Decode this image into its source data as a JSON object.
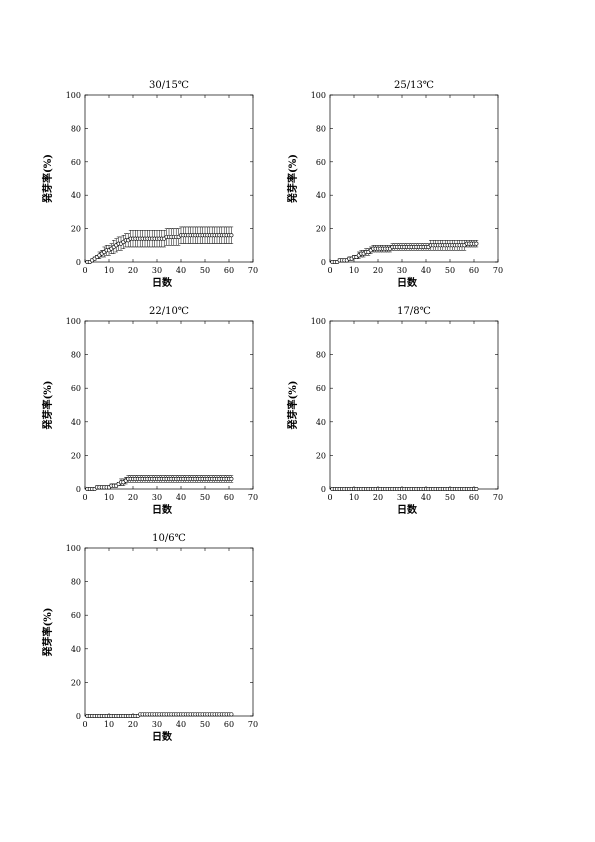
{
  "chart_data": [
    {
      "type": "scatter",
      "title": "30/15℃",
      "xlabel": "日数",
      "ylabel": "発芽率(%)",
      "xlim": [
        0,
        70
      ],
      "ylim": [
        0,
        100
      ],
      "xticks": [
        0,
        10,
        20,
        30,
        40,
        50,
        60,
        70
      ],
      "yticks": [
        0,
        20,
        40,
        60,
        80,
        100
      ],
      "grid": false,
      "error_bars": true,
      "x": [
        1,
        2,
        3,
        4,
        5,
        6,
        7,
        8,
        9,
        10,
        11,
        12,
        13,
        14,
        15,
        16,
        17,
        18,
        19,
        20,
        21,
        22,
        23,
        24,
        25,
        26,
        27,
        28,
        29,
        30,
        31,
        32,
        33,
        34,
        35,
        36,
        37,
        38,
        39,
        40,
        41,
        42,
        43,
        44,
        45,
        46,
        47,
        48,
        49,
        50,
        51,
        52,
        53,
        54,
        55,
        56,
        57,
        58,
        59,
        60,
        61
      ],
      "y": [
        0,
        0,
        1,
        2,
        3,
        4,
        5,
        6,
        7,
        7,
        8,
        9,
        10,
        11,
        11,
        12,
        13,
        13,
        14,
        14,
        14,
        14,
        14,
        14,
        14,
        14,
        14,
        14,
        14,
        14,
        14,
        14,
        14,
        15,
        15,
        15,
        15,
        15,
        15,
        16,
        16,
        16,
        16,
        16,
        16,
        16,
        16,
        16,
        16,
        16,
        16,
        16,
        16,
        16,
        16,
        16,
        16,
        16,
        16,
        16,
        16
      ],
      "err": [
        0,
        0,
        1,
        1,
        1,
        2,
        2,
        3,
        3,
        3,
        3,
        4,
        4,
        4,
        4,
        4,
        4,
        4,
        5,
        5,
        5,
        5,
        5,
        5,
        5,
        5,
        5,
        5,
        5,
        5,
        5,
        5,
        5,
        5,
        5,
        5,
        5,
        5,
        5,
        5,
        5,
        5,
        5,
        5,
        5,
        5,
        5,
        5,
        5,
        5,
        5,
        5,
        5,
        5,
        5,
        5,
        5,
        5,
        5,
        5,
        5
      ]
    },
    {
      "type": "scatter",
      "title": "25/13℃",
      "xlabel": "日数",
      "ylabel": "発芽率(%)",
      "xlim": [
        0,
        70
      ],
      "ylim": [
        0,
        100
      ],
      "xticks": [
        0,
        10,
        20,
        30,
        40,
        50,
        60,
        70
      ],
      "yticks": [
        0,
        20,
        40,
        60,
        80,
        100
      ],
      "grid": false,
      "error_bars": true,
      "x": [
        1,
        2,
        3,
        4,
        5,
        6,
        7,
        8,
        9,
        10,
        11,
        12,
        13,
        14,
        15,
        16,
        17,
        18,
        19,
        20,
        21,
        22,
        23,
        24,
        25,
        26,
        27,
        28,
        29,
        30,
        31,
        32,
        33,
        34,
        35,
        36,
        37,
        38,
        39,
        40,
        41,
        42,
        43,
        44,
        45,
        46,
        47,
        48,
        49,
        50,
        51,
        52,
        53,
        54,
        55,
        56,
        57,
        58,
        59,
        60,
        61
      ],
      "y": [
        0,
        0,
        0,
        1,
        1,
        1,
        1,
        2,
        2,
        3,
        3,
        4,
        5,
        5,
        6,
        6,
        7,
        8,
        8,
        8,
        8,
        8,
        8,
        8,
        8,
        9,
        9,
        9,
        9,
        9,
        9,
        9,
        9,
        9,
        9,
        9,
        9,
        9,
        9,
        9,
        9,
        10,
        10,
        10,
        10,
        10,
        10,
        10,
        10,
        10,
        10,
        10,
        10,
        10,
        10,
        10,
        11,
        11,
        11,
        11,
        11
      ],
      "err": [
        0,
        0,
        0,
        1,
        1,
        1,
        1,
        1,
        1,
        1,
        1,
        2,
        2,
        2,
        2,
        2,
        2,
        2,
        2,
        2,
        2,
        2,
        2,
        2,
        2,
        2,
        2,
        2,
        2,
        2,
        2,
        2,
        2,
        2,
        2,
        2,
        2,
        2,
        2,
        2,
        2,
        3,
        3,
        3,
        3,
        3,
        3,
        3,
        3,
        3,
        3,
        3,
        3,
        3,
        3,
        3,
        2,
        2,
        2,
        2,
        2
      ]
    },
    {
      "type": "scatter",
      "title": "22/10℃",
      "xlabel": "日数",
      "ylabel": "発芽率(%)",
      "xlim": [
        0,
        70
      ],
      "ylim": [
        0,
        100
      ],
      "xticks": [
        0,
        10,
        20,
        30,
        40,
        50,
        60,
        70
      ],
      "yticks": [
        0,
        20,
        40,
        60,
        80,
        100
      ],
      "grid": false,
      "error_bars": true,
      "x": [
        1,
        2,
        3,
        4,
        5,
        6,
        7,
        8,
        9,
        10,
        11,
        12,
        13,
        14,
        15,
        16,
        17,
        18,
        19,
        20,
        21,
        22,
        23,
        24,
        25,
        26,
        27,
        28,
        29,
        30,
        31,
        32,
        33,
        34,
        35,
        36,
        37,
        38,
        39,
        40,
        41,
        42,
        43,
        44,
        45,
        46,
        47,
        48,
        49,
        50,
        51,
        52,
        53,
        54,
        55,
        56,
        57,
        58,
        59,
        60,
        61
      ],
      "y": [
        0,
        0,
        0,
        0,
        1,
        1,
        1,
        1,
        1,
        1,
        2,
        2,
        2,
        3,
        4,
        4,
        5,
        6,
        6,
        6,
        6,
        6,
        6,
        6,
        6,
        6,
        6,
        6,
        6,
        6,
        6,
        6,
        6,
        6,
        6,
        6,
        6,
        6,
        6,
        6,
        6,
        6,
        6,
        6,
        6,
        6,
        6,
        6,
        6,
        6,
        6,
        6,
        6,
        6,
        6,
        6,
        6,
        6,
        6,
        6,
        6
      ],
      "err": [
        0,
        0,
        0,
        0,
        1,
        1,
        1,
        1,
        1,
        1,
        1,
        1,
        1,
        1,
        2,
        2,
        2,
        2,
        2,
        2,
        2,
        2,
        2,
        2,
        2,
        2,
        2,
        2,
        2,
        2,
        2,
        2,
        2,
        2,
        2,
        2,
        2,
        2,
        2,
        2,
        2,
        2,
        2,
        2,
        2,
        2,
        2,
        2,
        2,
        2,
        2,
        2,
        2,
        2,
        2,
        2,
        2,
        2,
        2,
        2,
        2
      ]
    },
    {
      "type": "scatter",
      "title": "17/8℃",
      "xlabel": "日数",
      "ylabel": "発芽率(%)",
      "xlim": [
        0,
        70
      ],
      "ylim": [
        0,
        100
      ],
      "xticks": [
        0,
        10,
        20,
        30,
        40,
        50,
        60,
        70
      ],
      "yticks": [
        0,
        20,
        40,
        60,
        80,
        100
      ],
      "grid": false,
      "error_bars": false,
      "x": [
        1,
        2,
        3,
        4,
        5,
        6,
        7,
        8,
        9,
        10,
        11,
        12,
        13,
        14,
        15,
        16,
        17,
        18,
        19,
        20,
        21,
        22,
        23,
        24,
        25,
        26,
        27,
        28,
        29,
        30,
        31,
        32,
        33,
        34,
        35,
        36,
        37,
        38,
        39,
        40,
        41,
        42,
        43,
        44,
        45,
        46,
        47,
        48,
        49,
        50,
        51,
        52,
        53,
        54,
        55,
        56,
        57,
        58,
        59,
        60,
        61
      ],
      "y": [
        0,
        0,
        0,
        0,
        0,
        0,
        0,
        0,
        0,
        0,
        0,
        0,
        0,
        0,
        0,
        0,
        0,
        0,
        0,
        0,
        0,
        0,
        0,
        0,
        0,
        0,
        0,
        0,
        0,
        0,
        0,
        0,
        0,
        0,
        0,
        0,
        0,
        0,
        0,
        0,
        0,
        0,
        0,
        0,
        0,
        0,
        0,
        0,
        0,
        0,
        0,
        0,
        0,
        0,
        0,
        0,
        0,
        0,
        0,
        0,
        0
      ],
      "err": []
    },
    {
      "type": "scatter",
      "title": "10/6℃",
      "xlabel": "日数",
      "ylabel": "発芽率(%)",
      "xlim": [
        0,
        70
      ],
      "ylim": [
        0,
        100
      ],
      "xticks": [
        0,
        10,
        20,
        30,
        40,
        50,
        60,
        70
      ],
      "yticks": [
        0,
        20,
        40,
        60,
        80,
        100
      ],
      "grid": false,
      "error_bars": false,
      "x": [
        1,
        2,
        3,
        4,
        5,
        6,
        7,
        8,
        9,
        10,
        11,
        12,
        13,
        14,
        15,
        16,
        17,
        18,
        19,
        20,
        21,
        22,
        23,
        24,
        25,
        26,
        27,
        28,
        29,
        30,
        31,
        32,
        33,
        34,
        35,
        36,
        37,
        38,
        39,
        40,
        41,
        42,
        43,
        44,
        45,
        46,
        47,
        48,
        49,
        50,
        51,
        52,
        53,
        54,
        55,
        56,
        57,
        58,
        59,
        60,
        61
      ],
      "y": [
        0,
        0,
        0,
        0,
        0,
        0,
        0,
        0,
        0,
        0,
        0,
        0,
        0,
        0,
        0,
        0,
        0,
        0,
        0,
        0,
        0,
        0,
        1,
        1,
        1,
        1,
        1,
        1,
        1,
        1,
        1,
        1,
        1,
        1,
        1,
        1,
        1,
        1,
        1,
        1,
        1,
        1,
        1,
        1,
        1,
        1,
        1,
        1,
        1,
        1,
        1,
        1,
        1,
        1,
        1,
        1,
        1,
        1,
        1,
        1,
        1
      ],
      "err": []
    }
  ]
}
